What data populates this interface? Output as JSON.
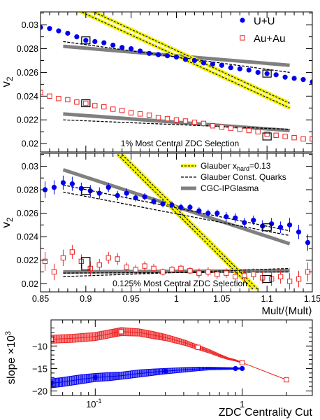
{
  "chart_data": [
    {
      "type": "scatter",
      "panel": "top",
      "annotation": "1% Most Central ZDC Selection",
      "ylabel": "v",
      "ylabel_sub": "2",
      "xlim": [
        0.85,
        1.15
      ],
      "ylim": [
        0.0193,
        0.0311
      ],
      "yticks": [
        0.02,
        0.022,
        0.024,
        0.026,
        0.028,
        0.03
      ],
      "ytick_labels": [
        "0.02",
        "0.022",
        "0.024",
        "0.026",
        "0.028",
        "0.03"
      ],
      "legend": [
        {
          "label": "U+U",
          "marker": "filled-circle",
          "color": "#0000ee"
        },
        {
          "label": "Au+Au",
          "marker": "open-square",
          "color": "#ee2222"
        }
      ],
      "series": [
        {
          "name": "U+U",
          "color": "#0000ee",
          "marker": "filled-circle",
          "x": [
            0.85,
            0.86,
            0.87,
            0.88,
            0.89,
            0.9,
            0.91,
            0.92,
            0.93,
            0.94,
            0.95,
            0.96,
            0.97,
            0.98,
            0.99,
            1.0,
            1.01,
            1.02,
            1.03,
            1.04,
            1.05,
            1.06,
            1.07,
            1.08,
            1.09,
            1.1,
            1.11,
            1.12,
            1.13,
            1.14,
            1.15
          ],
          "y": [
            0.0298,
            0.0297,
            0.0295,
            0.0293,
            0.029,
            0.0287,
            0.0286,
            0.0285,
            0.0283,
            0.0281,
            0.028,
            0.0278,
            0.0276,
            0.0275,
            0.0274,
            0.0273,
            0.0271,
            0.027,
            0.0268,
            0.0267,
            0.0266,
            0.0264,
            0.0263,
            0.0262,
            0.026,
            0.0259,
            0.0258,
            0.0256,
            0.0255,
            0.0254,
            0.0252
          ]
        },
        {
          "name": "Au+Au",
          "color": "#ee2222",
          "marker": "open-square",
          "x": [
            0.85,
            0.86,
            0.87,
            0.88,
            0.89,
            0.9,
            0.91,
            0.92,
            0.93,
            0.94,
            0.95,
            0.96,
            0.97,
            0.98,
            0.99,
            1.0,
            1.01,
            1.02,
            1.03,
            1.04,
            1.05,
            1.06,
            1.07,
            1.08,
            1.09,
            1.1,
            1.11,
            1.12,
            1.13,
            1.14,
            1.15
          ],
          "y": [
            0.0243,
            0.024,
            0.0238,
            0.0237,
            0.0235,
            0.0234,
            0.0232,
            0.0231,
            0.0229,
            0.0228,
            0.0226,
            0.0225,
            0.0224,
            0.0222,
            0.0221,
            0.022,
            0.0219,
            0.0218,
            0.0217,
            0.0215,
            0.0214,
            0.0213,
            0.0212,
            0.0211,
            0.021,
            0.0208,
            0.0207,
            0.0206,
            0.0205,
            0.0204,
            0.0204
          ]
        }
      ],
      "systematic_boxes": [
        {
          "series": "U+U",
          "x": 0.9,
          "y": 0.0287
        },
        {
          "series": "U+U",
          "x": 1.1,
          "y": 0.0259
        },
        {
          "series": "Au+Au",
          "x": 0.9,
          "y": 0.0234
        },
        {
          "series": "Au+Au",
          "x": 1.1,
          "y": 0.0206
        }
      ],
      "model_lines": [
        {
          "style": "glauber-xhard",
          "x": [
            0.875,
            1.125
          ],
          "y": [
            0.0318,
            0.023
          ]
        },
        {
          "style": "glauber-xhard",
          "x": [
            0.875,
            1.125
          ],
          "y": [
            0.0323,
            0.0234
          ]
        },
        {
          "style": "glauber-cq",
          "x": [
            0.875,
            1.125
          ],
          "y": [
            0.0286,
            0.026
          ]
        },
        {
          "style": "cgc",
          "x": [
            0.875,
            1.125
          ],
          "y": [
            0.0282,
            0.0266
          ]
        },
        {
          "style": "glauber-cq",
          "x": [
            0.875,
            1.125
          ],
          "y": [
            0.022,
            0.0212
          ]
        },
        {
          "style": "cgc",
          "x": [
            0.875,
            1.125
          ],
          "y": [
            0.0225,
            0.0211
          ]
        }
      ]
    },
    {
      "type": "scatter",
      "panel": "middle",
      "annotation": "0.125% Most Central ZDC Selection",
      "ylabel": "v",
      "ylabel_sub": "2",
      "xlabel": "Mult/⟨Mult⟩",
      "xlim": [
        0.85,
        1.15
      ],
      "ylim": [
        0.0193,
        0.0311
      ],
      "xticks": [
        0.85,
        0.9,
        0.95,
        1,
        1.05,
        1.1,
        1.15
      ],
      "xtick_labels": [
        "0.85",
        "0.9",
        "0.95",
        "1",
        "1.05",
        "1.1",
        "1.15"
      ],
      "yticks": [
        0.02,
        0.022,
        0.024,
        0.026,
        0.028,
        0.03
      ],
      "ytick_labels": [
        "0.02",
        "0.022",
        "0.024",
        "0.026",
        "0.028",
        "0.03"
      ],
      "legend": [
        {
          "label": "Glauber x",
          "sub": "hard",
          "suffix": "=0.13",
          "style": "glauber-xhard"
        },
        {
          "label": "Glauber Const. Quarks",
          "style": "glauber-cq"
        },
        {
          "label": "CGC-IPGlasma",
          "style": "cgc"
        }
      ],
      "series": [
        {
          "name": "U+U",
          "color": "#0000ee",
          "marker": "filled-circle",
          "x": [
            0.855,
            0.865,
            0.875,
            0.885,
            0.895,
            0.905,
            0.915,
            0.925,
            0.935,
            0.945,
            0.955,
            0.965,
            0.975,
            0.985,
            0.995,
            1.005,
            1.015,
            1.025,
            1.035,
            1.045,
            1.055,
            1.065,
            1.075,
            1.085,
            1.095,
            1.105,
            1.115,
            1.125,
            1.135,
            1.145
          ],
          "y": [
            0.028,
            0.0282,
            0.0286,
            0.0285,
            0.0281,
            0.0279,
            0.0277,
            0.0282,
            0.0275,
            0.0277,
            0.0273,
            0.0274,
            0.027,
            0.0268,
            0.0267,
            0.0265,
            0.0265,
            0.0262,
            0.026,
            0.026,
            0.0257,
            0.0256,
            0.0252,
            0.0254,
            0.0249,
            0.0251,
            0.0248,
            0.025,
            0.0244,
            0.0235
          ],
          "err": [
            0.0007,
            0.0006,
            0.0006,
            0.0006,
            0.0005,
            0.0005,
            0.0005,
            0.0004,
            0.0004,
            0.0004,
            0.0003,
            0.0003,
            0.0003,
            0.0003,
            0.0003,
            0.0003,
            0.0003,
            0.0003,
            0.0003,
            0.0003,
            0.0004,
            0.0004,
            0.0004,
            0.0004,
            0.0005,
            0.0005,
            0.0005,
            0.0006,
            0.0006,
            0.0007
          ]
        },
        {
          "name": "Au+Au",
          "color": "#ee2222",
          "marker": "open-square",
          "x": [
            0.855,
            0.865,
            0.875,
            0.885,
            0.895,
            0.905,
            0.915,
            0.925,
            0.935,
            0.945,
            0.955,
            0.965,
            0.975,
            0.985,
            0.995,
            1.005,
            1.015,
            1.025,
            1.035,
            1.045,
            1.055,
            1.065,
            1.075,
            1.085,
            1.095,
            1.105,
            1.115,
            1.125,
            1.135,
            1.145
          ],
          "y": [
            0.0219,
            0.021,
            0.0222,
            0.0227,
            0.0219,
            0.0213,
            0.0216,
            0.0222,
            0.0221,
            0.0214,
            0.0212,
            0.0215,
            0.0213,
            0.021,
            0.0212,
            0.0213,
            0.0211,
            0.0209,
            0.021,
            0.0208,
            0.0209,
            0.0206,
            0.0207,
            0.0208,
            0.0205,
            0.0204,
            0.0206,
            0.0202,
            0.0204,
            0.021
          ],
          "err": [
            0.0008,
            0.0007,
            0.0007,
            0.0006,
            0.0006,
            0.0006,
            0.0005,
            0.0005,
            0.0005,
            0.0004,
            0.0004,
            0.0004,
            0.0004,
            0.0003,
            0.0003,
            0.0003,
            0.0003,
            0.0004,
            0.0004,
            0.0004,
            0.0004,
            0.0004,
            0.0005,
            0.0005,
            0.0005,
            0.0006,
            0.0006,
            0.0007,
            0.0007,
            0.0008
          ]
        }
      ],
      "systematic_boxes": [
        {
          "series": "U+U",
          "x": 0.9,
          "y": 0.0279
        },
        {
          "series": "U+U",
          "x": 1.1,
          "y": 0.0248
        },
        {
          "series": "Au+Au",
          "x": 0.9,
          "y": 0.0217
        },
        {
          "series": "Au+Au",
          "x": 1.1,
          "y": 0.0204
        }
      ],
      "model_lines": [
        {
          "style": "glauber-xhard",
          "x": [
            0.935,
            1.085
          ],
          "y": [
            0.031,
            0.0195
          ]
        },
        {
          "style": "glauber-xhard",
          "x": [
            0.94,
            1.09
          ],
          "y": [
            0.031,
            0.0195
          ]
        },
        {
          "style": "glauber-cq",
          "x": [
            0.875,
            1.125
          ],
          "y": [
            0.0284,
            0.0245
          ]
        },
        {
          "style": "glauber-cq",
          "x": [
            0.875,
            1.125
          ],
          "y": [
            0.0278,
            0.0241
          ]
        },
        {
          "style": "cgc",
          "x": [
            0.875,
            1.125
          ],
          "y": [
            0.0297,
            0.0234
          ]
        },
        {
          "style": "glauber-cq",
          "x": [
            0.875,
            1.125
          ],
          "y": [
            0.0209,
            0.021
          ]
        },
        {
          "style": "glauber-cq",
          "x": [
            0.875,
            1.125
          ],
          "y": [
            0.0206,
            0.0213
          ]
        },
        {
          "style": "cgc",
          "x": [
            0.875,
            1.125
          ],
          "y": [
            0.021,
            0.0211
          ]
        }
      ]
    },
    {
      "type": "line",
      "panel": "bottom",
      "xscale": "log",
      "xlabel": "ZDC Centrality Cut",
      "ylabel": "slope ×10",
      "ylabel_sup": "3",
      "xlim": [
        0.05,
        3
      ],
      "ylim": [
        -21,
        -4.2
      ],
      "xtick_labels": [
        "10",
        "-1",
        "1"
      ],
      "xticks": [
        0.1,
        1
      ],
      "yticks": [
        -20,
        -15,
        -10
      ],
      "ytick_labels": [
        "−20",
        "−15",
        "−10"
      ],
      "series": [
        {
          "name": "Au+Au",
          "color": "#ee2222",
          "marker": "open-square",
          "x": [
            0.05,
            0.07,
            0.1,
            0.13,
            0.15,
            0.2,
            0.25,
            0.3,
            0.4,
            0.5,
            0.6,
            0.7,
            0.8,
            0.9,
            1.0,
            2.0
          ],
          "y": [
            -8.5,
            -8.3,
            -7.9,
            -7.2,
            -6.8,
            -7.0,
            -7.6,
            -8.1,
            -9.2,
            -10.3,
            -11.2,
            -12.1,
            -12.8,
            -13.2,
            -13.7,
            -17.5
          ],
          "band_halfwidth": [
            0.9,
            0.9,
            0.9,
            0.9,
            0.9,
            0.8,
            0.8,
            0.7,
            0.6,
            0.5,
            0.4,
            0.3,
            0.2,
            0.15,
            0.1,
            0.1
          ]
        },
        {
          "name": "U+U",
          "color": "#0000ee",
          "marker": "filled-circle",
          "x": [
            0.05,
            0.06,
            0.08,
            0.1,
            0.125,
            0.15,
            0.2,
            0.25,
            0.3,
            0.4,
            0.5,
            0.6,
            0.7,
            0.8,
            0.9,
            1.0
          ],
          "y": [
            -18.3,
            -18.0,
            -17.4,
            -17.0,
            -16.8,
            -16.6,
            -16.1,
            -15.8,
            -15.6,
            -15.3,
            -15.1,
            -15.0,
            -15.0,
            -15.0,
            -15.0,
            -15.0
          ],
          "band_halfwidth": [
            1.0,
            1.0,
            1.0,
            0.9,
            0.9,
            0.8,
            0.8,
            0.7,
            0.6,
            0.5,
            0.4,
            0.3,
            0.25,
            0.2,
            0.15,
            0.1
          ]
        }
      ]
    }
  ]
}
